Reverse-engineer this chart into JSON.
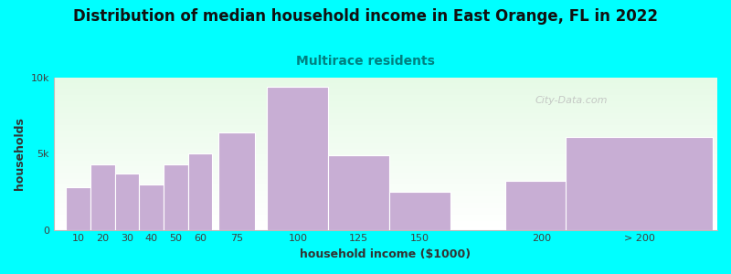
{
  "title": "Distribution of median household income in East Orange, FL in 2022",
  "subtitle": "Multirace residents",
  "xlabel": "household income ($1000)",
  "ylabel": "households",
  "background_color": "#00FFFF",
  "bar_color": "#c8aed4",
  "categories": [
    "10",
    "20",
    "30",
    "40",
    "50",
    "60",
    "75",
    "100",
    "125",
    "150",
    "200",
    "> 200"
  ],
  "values": [
    2800,
    4300,
    3700,
    3000,
    4300,
    5000,
    6400,
    9400,
    4900,
    2500,
    3200,
    6100
  ],
  "ylim": [
    0,
    10000
  ],
  "ytick_labels": [
    "0",
    "5k",
    "10k"
  ],
  "watermark": "City-Data.com",
  "title_fontsize": 12,
  "subtitle_fontsize": 10,
  "axis_label_fontsize": 9,
  "subtitle_color": "#008080",
  "title_color": "#111111",
  "x_positions": [
    10,
    20,
    30,
    40,
    50,
    60,
    75,
    100,
    125,
    150,
    200,
    240
  ],
  "bar_widths": [
    10,
    10,
    10,
    10,
    10,
    10,
    15,
    25,
    25,
    25,
    30,
    60
  ]
}
